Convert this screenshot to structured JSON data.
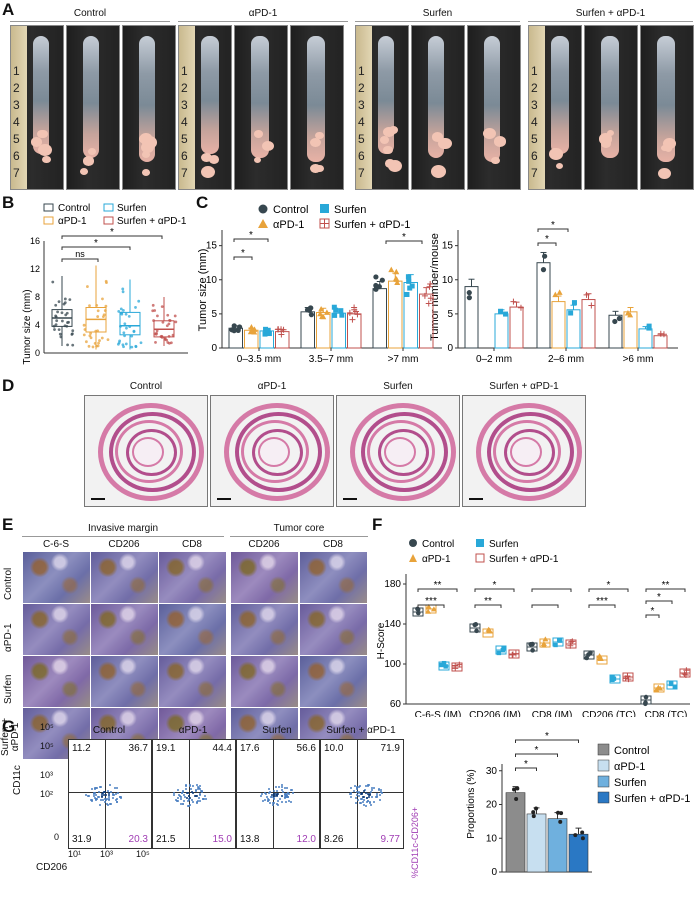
{
  "panels": {
    "A": "A",
    "B": "B",
    "C": "C",
    "D": "D",
    "E": "E",
    "F": "F",
    "G": "G"
  },
  "groups": [
    "Control",
    "αPD-1",
    "Surfen",
    "Surfen + αPD-1"
  ],
  "colors": {
    "control": "#37474f",
    "apd1": "#e8a33b",
    "surfen": "#29a8d8",
    "combo": "#c0504d",
    "g_control": "#8c8c8c",
    "g_apd1": "#c7dff0",
    "g_surfen": "#6fb0de",
    "g_combo": "#2a78c4"
  },
  "panel_a": {
    "ruler_marks": [
      "1",
      "2",
      "3",
      "4",
      "5",
      "6",
      "7"
    ]
  },
  "panel_b": {
    "ylabel": "Tumor size (mm)",
    "yticks": [
      "0",
      "4",
      "8",
      "12",
      "16"
    ],
    "sig": [
      "ns",
      "*",
      "*"
    ]
  },
  "panel_c": {
    "ylabel_left": "Tumor size (mm)",
    "yticks_left": [
      "0",
      "5",
      "10",
      "15"
    ],
    "categories_left": [
      "0–3.5 mm",
      "3.5–7 mm",
      ">7 mm"
    ],
    "ylabel_right": "Tumor number/mouse",
    "yticks_right": [
      "0",
      "5",
      "10",
      "15"
    ],
    "categories_right": [
      "0–2 mm",
      "2–6 mm",
      ">6 mm"
    ],
    "sig": [
      "*",
      "*",
      "*",
      "*",
      "*"
    ]
  },
  "panel_d": {
    "titles": [
      "Control",
      "αPD-1",
      "Surfen",
      "Surfen + αPD-1"
    ]
  },
  "panel_e": {
    "header_im": "Invasive margin",
    "header_tc": "Tumor core",
    "cols": [
      "C-6-S",
      "CD206",
      "CD8",
      "CD206",
      "CD8"
    ],
    "rows": [
      "Control",
      "αPD-1",
      "Surfen",
      "Surfen +\nαPD-1"
    ]
  },
  "panel_f": {
    "ylabel": "H-Score",
    "yticks": [
      "60",
      "100",
      "140",
      "180"
    ],
    "categories": [
      "C-6-S (IM)",
      "CD206 (IM)",
      "CD8 (IM)",
      "CD206 (TC)",
      "CD8 (TC)"
    ],
    "sig": [
      "**",
      "***",
      "*",
      "**",
      "*",
      "***",
      "*",
      "**",
      "*",
      "*"
    ]
  },
  "panel_g": {
    "titles": [
      "Control",
      "αPD-1",
      "Surfen",
      "Surfen + αPD-1"
    ],
    "ylabel": "CD11c",
    "xlabel": "CD206",
    "side_label": "%CD11c-CD206+",
    "yticks": [
      "10⁵",
      "10³",
      "10²",
      "0"
    ],
    "xticks": [
      "10¹",
      "10³",
      "10⁵"
    ],
    "quads": [
      [
        "11.2",
        "36.7",
        "31.9",
        "20.3"
      ],
      [
        "19.1",
        "44.4",
        "21.5",
        "15.0"
      ],
      [
        "17.6",
        "56.6",
        "13.8",
        "12.0"
      ],
      [
        "10.0",
        "71.9",
        "8.26",
        "9.77"
      ]
    ],
    "bar_ylabel": "Proportions (%)",
    "bar_yticks": [
      "0",
      "10",
      "20",
      "30"
    ],
    "legend": [
      "Control",
      "αPD-1",
      "Surfen",
      "Surfen + αPD-1"
    ],
    "sig": [
      "*",
      "*",
      "*"
    ]
  },
  "chart_data": [
    {
      "type": "box",
      "title": "",
      "ylabel": "Tumor size (mm)",
      "ylim": [
        0,
        16
      ],
      "categories": [
        "Control",
        "αPD-1",
        "Surfen",
        "Surfen + αPD-1"
      ],
      "series": [
        {
          "name": "Control",
          "median": 5.0,
          "q1": 3.8,
          "q3": 6.2,
          "min": 1.0,
          "max": 11.0
        },
        {
          "name": "αPD-1",
          "median": 4.8,
          "q1": 3.0,
          "q3": 6.5,
          "min": 0.5,
          "max": 12.5
        },
        {
          "name": "Surfen",
          "median": 3.9,
          "q1": 2.6,
          "q3": 5.8,
          "min": 0.5,
          "max": 10.5
        },
        {
          "name": "Surfen + αPD-1",
          "median": 3.4,
          "q1": 2.3,
          "q3": 4.6,
          "min": 1.0,
          "max": 8.0
        }
      ]
    },
    {
      "type": "bar",
      "ylabel": "Tumor size (mm)",
      "ylim": [
        0,
        17
      ],
      "categories": [
        "0–3.5 mm",
        "3.5–7 mm",
        ">7 mm"
      ],
      "series": [
        {
          "name": "Control",
          "values": [
            2.9,
            5.3,
            8.7
          ]
        },
        {
          "name": "αPD-1",
          "values": [
            2.6,
            5.2,
            9.8
          ]
        },
        {
          "name": "Surfen",
          "values": [
            2.5,
            5.1,
            9.6
          ]
        },
        {
          "name": "Surfen + αPD-1",
          "values": [
            2.4,
            5.0,
            7.9
          ]
        }
      ]
    },
    {
      "type": "bar",
      "ylabel": "Tumor number/mouse",
      "ylim": [
        0,
        17
      ],
      "categories": [
        "0–2 mm",
        "2–6 mm",
        ">6 mm"
      ],
      "series": [
        {
          "name": "Control",
          "values": [
            9.0,
            12.5,
            4.8
          ]
        },
        {
          "name": "αPD-1",
          "values": [
            0,
            6.8,
            5.3
          ]
        },
        {
          "name": "Surfen",
          "values": [
            5.0,
            5.6,
            2.8
          ]
        },
        {
          "name": "Surfen + αPD-1",
          "values": [
            6.0,
            7.1,
            1.8
          ]
        }
      ]
    },
    {
      "type": "bar",
      "ylabel": "H-Score",
      "ylim": [
        60,
        190
      ],
      "categories": [
        "C-6-S (IM)",
        "CD206 (IM)",
        "CD8 (IM)",
        "CD206 (TC)",
        "CD8 (TC)"
      ],
      "series": [
        {
          "name": "Control",
          "values": [
            152,
            136,
            117,
            109,
            64
          ]
        },
        {
          "name": "αPD-1",
          "values": [
            155,
            131,
            121,
            104,
            76
          ]
        },
        {
          "name": "Surfen",
          "values": [
            98,
            114,
            122,
            85,
            79
          ]
        },
        {
          "name": "Surfen + αPD-1",
          "values": [
            97,
            110,
            120,
            87,
            91
          ]
        }
      ]
    },
    {
      "type": "bar",
      "ylabel": "Proportions (%)",
      "ylim": [
        0,
        32
      ],
      "categories": [
        "Control",
        "αPD-1",
        "Surfen",
        "Surfen + αPD-1"
      ],
      "values": [
        23.5,
        17.2,
        15.8,
        11.2
      ]
    }
  ]
}
